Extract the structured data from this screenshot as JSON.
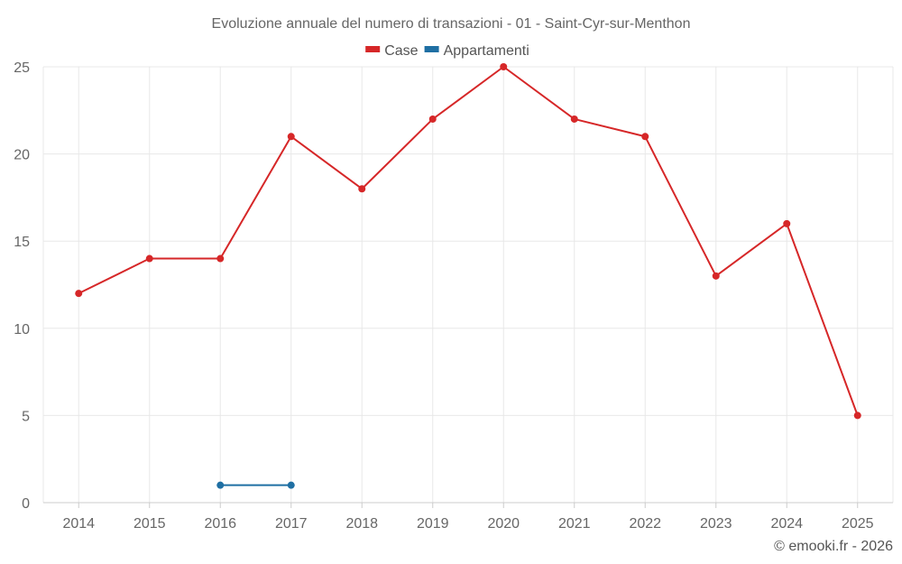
{
  "chart_data": {
    "type": "line",
    "title": "Evoluzione annuale del numero di transazioni - 01 - Saint-Cyr-sur-Menthon",
    "xlabel": "",
    "ylabel": "",
    "categories": [
      "2014",
      "2015",
      "2016",
      "2017",
      "2018",
      "2019",
      "2020",
      "2021",
      "2022",
      "2023",
      "2024",
      "2025"
    ],
    "ylim": [
      0,
      25
    ],
    "yticks": [
      "0",
      "5",
      "10",
      "15",
      "20",
      "25"
    ],
    "grid": true,
    "legend_position": "top-center",
    "series": [
      {
        "name": "Case",
        "color": "#d62728",
        "values": [
          12,
          14,
          14,
          21,
          18,
          22,
          25,
          22,
          21,
          13,
          16,
          5
        ]
      },
      {
        "name": "Appartamenti",
        "color": "#1f6fa3",
        "values": [
          null,
          null,
          1,
          1,
          null,
          null,
          null,
          null,
          null,
          null,
          null,
          null
        ]
      }
    ]
  },
  "credit": "© emooki.fr - 2026"
}
